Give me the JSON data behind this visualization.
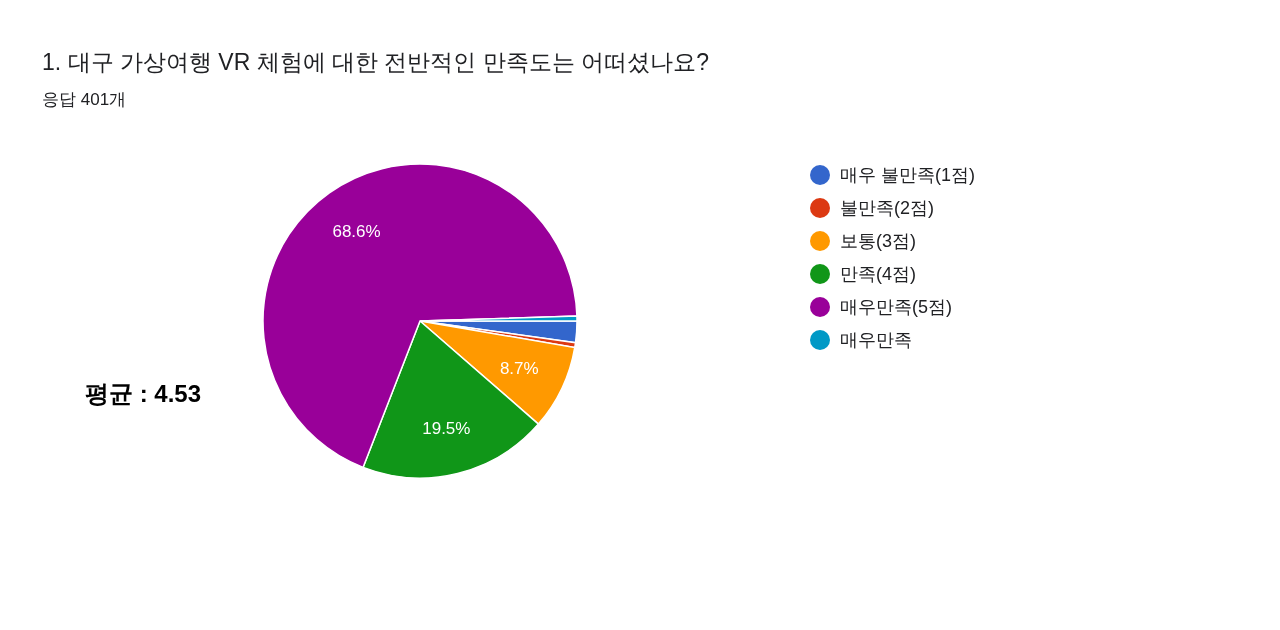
{
  "chart_data": {
    "type": "pie",
    "title": "1. 대구 가상여행 VR 체험에 대한 전반적인 만족도는 어떠셨나요?",
    "subtitle": "응답 401개",
    "categories": [
      "매우 불만족(1점)",
      "불만족(2점)",
      "보통(3점)",
      "만족(4점)",
      "매우만족(5점)",
      "매우만족"
    ],
    "values": [
      2.2,
      0.5,
      8.7,
      19.5,
      68.6,
      0.5
    ],
    "colors": [
      "#3366cc",
      "#dc3912",
      "#ff9900",
      "#109618",
      "#990099",
      "#0099c6"
    ],
    "value_labels": [
      null,
      null,
      "8.7%",
      "19.5%",
      "68.6%",
      null
    ],
    "legend": "right",
    "annotations": [
      "평균 : 4.53"
    ]
  }
}
